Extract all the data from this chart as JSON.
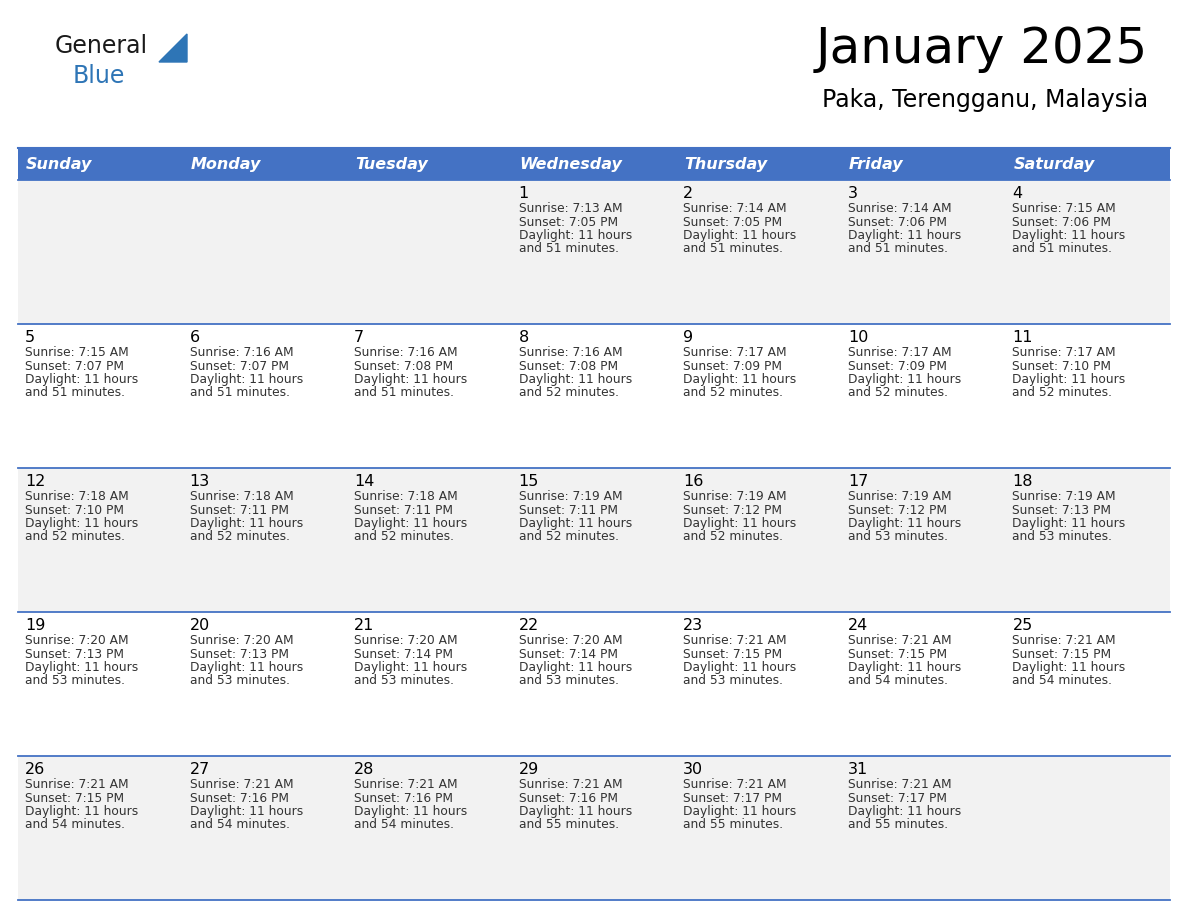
{
  "title": "January 2025",
  "subtitle": "Paka, Terengganu, Malaysia",
  "days_of_week": [
    "Sunday",
    "Monday",
    "Tuesday",
    "Wednesday",
    "Thursday",
    "Friday",
    "Saturday"
  ],
  "header_bg": "#4472C4",
  "header_text": "#FFFFFF",
  "row_bg_odd": "#F2F2F2",
  "row_bg_even": "#FFFFFF",
  "day_num_color": "#000000",
  "data_text_color": "#333333",
  "grid_line_color": "#4472C4",
  "title_color": "#000000",
  "subtitle_color": "#000000",
  "logo_general_color": "#1a1a1a",
  "logo_blue_color": "#2E75B6",
  "calendar_data": [
    {
      "day": 1,
      "col": 3,
      "row": 0,
      "sunrise": "7:13 AM",
      "sunset": "7:05 PM",
      "daylight": "11 hours and 51 minutes."
    },
    {
      "day": 2,
      "col": 4,
      "row": 0,
      "sunrise": "7:14 AM",
      "sunset": "7:05 PM",
      "daylight": "11 hours and 51 minutes."
    },
    {
      "day": 3,
      "col": 5,
      "row": 0,
      "sunrise": "7:14 AM",
      "sunset": "7:06 PM",
      "daylight": "11 hours and 51 minutes."
    },
    {
      "day": 4,
      "col": 6,
      "row": 0,
      "sunrise": "7:15 AM",
      "sunset": "7:06 PM",
      "daylight": "11 hours and 51 minutes."
    },
    {
      "day": 5,
      "col": 0,
      "row": 1,
      "sunrise": "7:15 AM",
      "sunset": "7:07 PM",
      "daylight": "11 hours and 51 minutes."
    },
    {
      "day": 6,
      "col": 1,
      "row": 1,
      "sunrise": "7:16 AM",
      "sunset": "7:07 PM",
      "daylight": "11 hours and 51 minutes."
    },
    {
      "day": 7,
      "col": 2,
      "row": 1,
      "sunrise": "7:16 AM",
      "sunset": "7:08 PM",
      "daylight": "11 hours and 51 minutes."
    },
    {
      "day": 8,
      "col": 3,
      "row": 1,
      "sunrise": "7:16 AM",
      "sunset": "7:08 PM",
      "daylight": "11 hours and 52 minutes."
    },
    {
      "day": 9,
      "col": 4,
      "row": 1,
      "sunrise": "7:17 AM",
      "sunset": "7:09 PM",
      "daylight": "11 hours and 52 minutes."
    },
    {
      "day": 10,
      "col": 5,
      "row": 1,
      "sunrise": "7:17 AM",
      "sunset": "7:09 PM",
      "daylight": "11 hours and 52 minutes."
    },
    {
      "day": 11,
      "col": 6,
      "row": 1,
      "sunrise": "7:17 AM",
      "sunset": "7:10 PM",
      "daylight": "11 hours and 52 minutes."
    },
    {
      "day": 12,
      "col": 0,
      "row": 2,
      "sunrise": "7:18 AM",
      "sunset": "7:10 PM",
      "daylight": "11 hours and 52 minutes."
    },
    {
      "day": 13,
      "col": 1,
      "row": 2,
      "sunrise": "7:18 AM",
      "sunset": "7:11 PM",
      "daylight": "11 hours and 52 minutes."
    },
    {
      "day": 14,
      "col": 2,
      "row": 2,
      "sunrise": "7:18 AM",
      "sunset": "7:11 PM",
      "daylight": "11 hours and 52 minutes."
    },
    {
      "day": 15,
      "col": 3,
      "row": 2,
      "sunrise": "7:19 AM",
      "sunset": "7:11 PM",
      "daylight": "11 hours and 52 minutes."
    },
    {
      "day": 16,
      "col": 4,
      "row": 2,
      "sunrise": "7:19 AM",
      "sunset": "7:12 PM",
      "daylight": "11 hours and 52 minutes."
    },
    {
      "day": 17,
      "col": 5,
      "row": 2,
      "sunrise": "7:19 AM",
      "sunset": "7:12 PM",
      "daylight": "11 hours and 53 minutes."
    },
    {
      "day": 18,
      "col": 6,
      "row": 2,
      "sunrise": "7:19 AM",
      "sunset": "7:13 PM",
      "daylight": "11 hours and 53 minutes."
    },
    {
      "day": 19,
      "col": 0,
      "row": 3,
      "sunrise": "7:20 AM",
      "sunset": "7:13 PM",
      "daylight": "11 hours and 53 minutes."
    },
    {
      "day": 20,
      "col": 1,
      "row": 3,
      "sunrise": "7:20 AM",
      "sunset": "7:13 PM",
      "daylight": "11 hours and 53 minutes."
    },
    {
      "day": 21,
      "col": 2,
      "row": 3,
      "sunrise": "7:20 AM",
      "sunset": "7:14 PM",
      "daylight": "11 hours and 53 minutes."
    },
    {
      "day": 22,
      "col": 3,
      "row": 3,
      "sunrise": "7:20 AM",
      "sunset": "7:14 PM",
      "daylight": "11 hours and 53 minutes."
    },
    {
      "day": 23,
      "col": 4,
      "row": 3,
      "sunrise": "7:21 AM",
      "sunset": "7:15 PM",
      "daylight": "11 hours and 53 minutes."
    },
    {
      "day": 24,
      "col": 5,
      "row": 3,
      "sunrise": "7:21 AM",
      "sunset": "7:15 PM",
      "daylight": "11 hours and 54 minutes."
    },
    {
      "day": 25,
      "col": 6,
      "row": 3,
      "sunrise": "7:21 AM",
      "sunset": "7:15 PM",
      "daylight": "11 hours and 54 minutes."
    },
    {
      "day": 26,
      "col": 0,
      "row": 4,
      "sunrise": "7:21 AM",
      "sunset": "7:15 PM",
      "daylight": "11 hours and 54 minutes."
    },
    {
      "day": 27,
      "col": 1,
      "row": 4,
      "sunrise": "7:21 AM",
      "sunset": "7:16 PM",
      "daylight": "11 hours and 54 minutes."
    },
    {
      "day": 28,
      "col": 2,
      "row": 4,
      "sunrise": "7:21 AM",
      "sunset": "7:16 PM",
      "daylight": "11 hours and 54 minutes."
    },
    {
      "day": 29,
      "col": 3,
      "row": 4,
      "sunrise": "7:21 AM",
      "sunset": "7:16 PM",
      "daylight": "11 hours and 55 minutes."
    },
    {
      "day": 30,
      "col": 4,
      "row": 4,
      "sunrise": "7:21 AM",
      "sunset": "7:17 PM",
      "daylight": "11 hours and 55 minutes."
    },
    {
      "day": 31,
      "col": 5,
      "row": 4,
      "sunrise": "7:21 AM",
      "sunset": "7:17 PM",
      "daylight": "11 hours and 55 minutes."
    }
  ]
}
